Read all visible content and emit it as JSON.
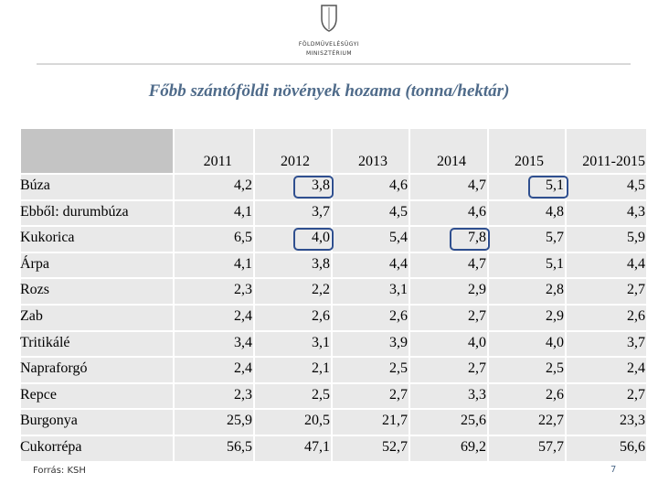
{
  "header": {
    "ministry_line1": "FÖLDMŰVELÉSÜGYI",
    "ministry_line2": "MINISZTÉRIUM",
    "title": "Főbb szántóföldi növények hozama (tonna/hektár)"
  },
  "table": {
    "columns": [
      "2011",
      "2012",
      "2013",
      "2014",
      "2015",
      "2011-2015"
    ],
    "rows": [
      [
        "Búza",
        "4,2",
        "3,8",
        "4,6",
        "4,7",
        "5,1",
        "4,5"
      ],
      [
        "Ebből: durumbúza",
        "4,1",
        "3,7",
        "4,5",
        "4,6",
        "4,8",
        "4,3"
      ],
      [
        "Kukorica",
        "6,5",
        "4,0",
        "5,4",
        "7,8",
        "5,7",
        "5,9"
      ],
      [
        "Árpa",
        "4,1",
        "3,8",
        "4,4",
        "4,7",
        "5,1",
        "4,4"
      ],
      [
        "Rozs",
        "2,3",
        "2,2",
        "3,1",
        "2,9",
        "2,8",
        "2,7"
      ],
      [
        "Zab",
        "2,4",
        "2,6",
        "2,6",
        "2,7",
        "2,9",
        "2,6"
      ],
      [
        "Tritikálé",
        "3,4",
        "3,1",
        "3,9",
        "4,0",
        "4,0",
        "3,7"
      ],
      [
        "Napraforgó",
        "2,4",
        "2,1",
        "2,5",
        "2,7",
        "2,5",
        "2,4"
      ],
      [
        "Repce",
        "2,3",
        "2,5",
        "2,7",
        "3,3",
        "2,6",
        "2,7"
      ],
      [
        "Burgonya",
        "25,9",
        "20,5",
        "21,7",
        "25,6",
        "22,7",
        "23,3"
      ],
      [
        "Cukorrépa",
        "56,5",
        "47,1",
        "52,7",
        "69,2",
        "57,7",
        "56,6"
      ]
    ]
  },
  "footer": {
    "source": "Forrás: KSH",
    "page": "7"
  }
}
